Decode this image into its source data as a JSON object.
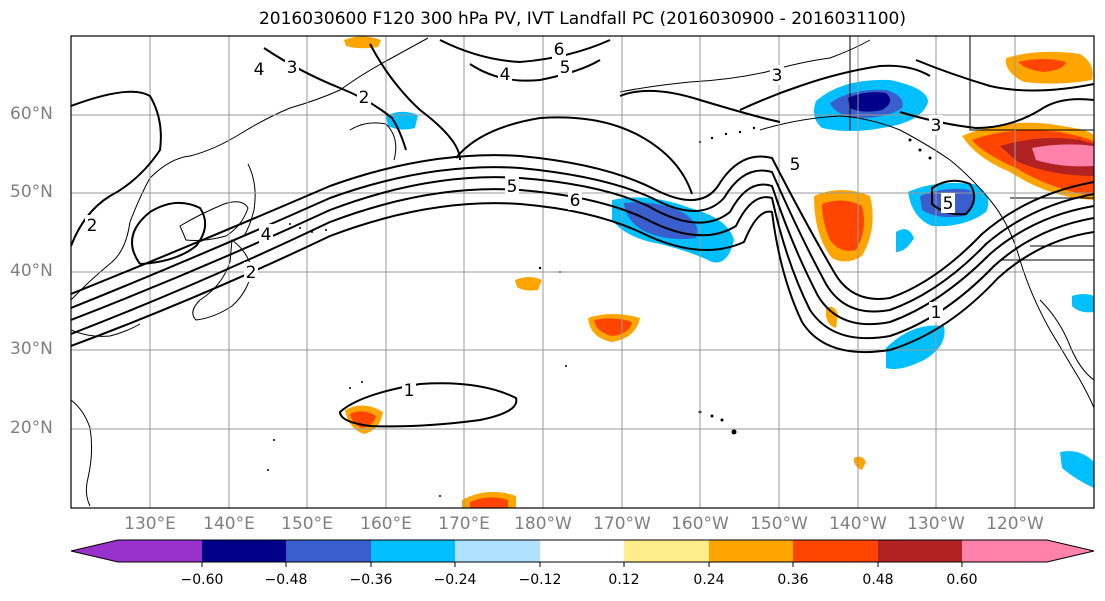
{
  "title": "2016030600 F120 300 hPa PV, IVT Landfall PC (2016030900 - 2016031100)",
  "lat_labels": [
    "60°N",
    "50°N",
    "40°N",
    "30°N",
    "20°N"
  ],
  "lon_labels": [
    "130°E",
    "140°E",
    "150°E",
    "160°E",
    "170°E",
    "180°W",
    "170°W",
    "160°W",
    "150°W",
    "140°W",
    "130°W",
    "120°W"
  ],
  "pv_contour_labels": [
    "4",
    "3",
    "2",
    "6",
    "5",
    "4",
    "3",
    "3",
    "2",
    "4",
    "2",
    "5",
    "6",
    "5",
    "5",
    "1",
    "1"
  ],
  "colorbar": {
    "tick_labels": [
      "−0.60",
      "−0.48",
      "−0.36",
      "−0.24",
      "−0.12",
      "0.12",
      "0.24",
      "0.36",
      "0.48",
      "0.60"
    ],
    "colors": [
      "#9932cc",
      "#00008b",
      "#3a5fcd",
      "#00bfff",
      "#b0e2ff",
      "#ffffff",
      "#ffec8b",
      "#ffa500",
      "#ff4500",
      "#b22222",
      "#ff82ab"
    ]
  }
}
